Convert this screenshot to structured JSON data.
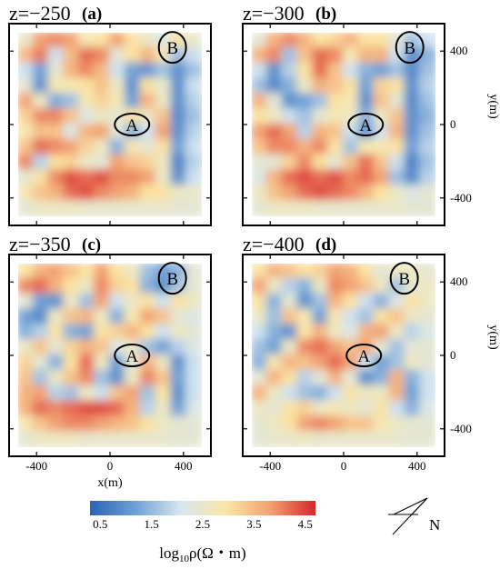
{
  "chart_data": [
    {
      "type": "heatmap",
      "title": "z=−250",
      "panel_label": "(a)",
      "xlim": [
        -500,
        500
      ],
      "ylim": [
        -500,
        500
      ],
      "x_ticks": [
        "-400",
        "0",
        "400"
      ],
      "y_ticks": [
        "400",
        "0",
        "-400"
      ],
      "xlabel": "",
      "ylabel": "",
      "annotations": [
        {
          "text": "A",
          "x": 120,
          "y": 0
        },
        {
          "text": "B",
          "x": 340,
          "y": 420
        }
      ],
      "z": [
        [
          2.5,
          3.8,
          4.0,
          3.8,
          2.8,
          3.0,
          3.8,
          3.0,
          2.6,
          2.2,
          3.0,
          2.5
        ],
        [
          3.5,
          4.1,
          2.0,
          3.5,
          4.2,
          4.0,
          2.4,
          3.0,
          3.6,
          2.8,
          1.6,
          2.0
        ],
        [
          2.0,
          1.2,
          2.4,
          3.6,
          4.0,
          3.5,
          2.0,
          1.2,
          1.1,
          1.6,
          1.0,
          1.6
        ],
        [
          2.4,
          1.0,
          2.8,
          2.8,
          3.0,
          3.4,
          2.6,
          1.0,
          3.0,
          2.5,
          1.0,
          2.0
        ],
        [
          3.8,
          2.6,
          1.3,
          1.6,
          2.8,
          3.2,
          2.8,
          1.2,
          3.6,
          2.6,
          1.0,
          1.8
        ],
        [
          3.2,
          4.0,
          4.0,
          3.4,
          2.2,
          2.6,
          2.4,
          3.0,
          2.6,
          3.4,
          0.9,
          1.6
        ],
        [
          2.8,
          3.4,
          3.4,
          2.2,
          3.6,
          3.8,
          2.4,
          1.4,
          2.0,
          3.8,
          1.0,
          1.8
        ],
        [
          3.4,
          4.2,
          4.0,
          3.8,
          3.2,
          2.6,
          1.4,
          2.8,
          2.4,
          3.0,
          1.2,
          2.0
        ],
        [
          4.0,
          1.8,
          3.0,
          3.2,
          2.6,
          2.4,
          3.8,
          3.4,
          3.2,
          2.6,
          0.8,
          1.8
        ],
        [
          2.4,
          3.0,
          4.0,
          4.4,
          4.2,
          4.4,
          4.0,
          4.0,
          3.8,
          2.6,
          1.0,
          2.0
        ],
        [
          2.8,
          3.4,
          3.6,
          4.2,
          4.4,
          4.0,
          3.8,
          3.6,
          3.0,
          3.0,
          2.6,
          2.5
        ],
        [
          2.4,
          2.6,
          2.6,
          2.6,
          2.5,
          2.5,
          2.5,
          2.5,
          2.5,
          2.5,
          2.4,
          2.4
        ]
      ]
    },
    {
      "type": "heatmap",
      "title": "z=−300",
      "panel_label": "(b)",
      "xlim": [
        -500,
        500
      ],
      "ylim": [
        -500,
        500
      ],
      "x_ticks": [
        "-400",
        "0",
        "400"
      ],
      "y_ticks": [
        "400",
        "0",
        "-400"
      ],
      "xlabel": "",
      "ylabel": "y(m)",
      "annotations": [
        {
          "text": "A",
          "x": 120,
          "y": 0
        },
        {
          "text": "B",
          "x": 360,
          "y": 420
        }
      ],
      "z": [
        [
          2.4,
          3.6,
          4.0,
          3.6,
          3.0,
          3.2,
          3.6,
          3.0,
          3.0,
          2.4,
          1.6,
          2.0
        ],
        [
          3.6,
          4.0,
          1.6,
          3.4,
          4.2,
          4.0,
          2.8,
          3.6,
          3.6,
          2.0,
          1.0,
          1.4
        ],
        [
          2.0,
          1.0,
          1.8,
          3.0,
          4.2,
          3.4,
          2.0,
          1.4,
          1.2,
          1.6,
          0.9,
          1.6
        ],
        [
          1.6,
          0.9,
          1.4,
          2.6,
          3.6,
          3.4,
          3.0,
          1.2,
          3.2,
          3.0,
          1.0,
          1.8
        ],
        [
          3.6,
          2.4,
          1.0,
          1.2,
          1.6,
          3.0,
          2.8,
          1.0,
          3.4,
          2.4,
          0.9,
          1.6
        ],
        [
          3.0,
          2.6,
          2.0,
          1.6,
          2.4,
          2.8,
          2.6,
          1.4,
          2.6,
          3.4,
          1.0,
          1.4
        ],
        [
          3.8,
          4.2,
          3.8,
          1.8,
          3.6,
          3.4,
          2.0,
          1.0,
          2.0,
          3.6,
          1.0,
          1.6
        ],
        [
          3.4,
          4.0,
          4.0,
          3.6,
          4.0,
          3.0,
          1.6,
          2.8,
          2.8,
          3.0,
          1.2,
          1.8
        ],
        [
          2.4,
          2.4,
          3.2,
          4.0,
          3.0,
          2.4,
          3.4,
          4.2,
          3.4,
          2.0,
          0.8,
          1.6
        ],
        [
          2.2,
          3.6,
          4.2,
          4.4,
          4.2,
          4.4,
          4.0,
          4.2,
          3.8,
          1.6,
          0.9,
          1.8
        ],
        [
          2.6,
          3.4,
          3.8,
          4.2,
          4.4,
          4.2,
          4.0,
          3.6,
          3.0,
          2.6,
          2.2,
          2.4
        ],
        [
          2.4,
          2.6,
          2.6,
          2.6,
          2.5,
          2.5,
          2.5,
          2.5,
          2.5,
          2.5,
          2.4,
          2.4
        ]
      ]
    },
    {
      "type": "heatmap",
      "title": "z=−350",
      "panel_label": "(c)",
      "xlim": [
        -500,
        500
      ],
      "ylim": [
        -500,
        500
      ],
      "x_ticks": [
        "-400",
        "0",
        "400"
      ],
      "y_ticks": [
        "400",
        "0",
        "-400"
      ],
      "xlabel": "x(m)",
      "ylabel": "",
      "annotations": [
        {
          "text": "A",
          "x": 120,
          "y": 0
        },
        {
          "text": "B",
          "x": 340,
          "y": 420
        }
      ],
      "z": [
        [
          3.0,
          3.6,
          3.8,
          3.4,
          3.0,
          3.8,
          3.0,
          2.6,
          1.6,
          1.2,
          1.4,
          2.4
        ],
        [
          4.0,
          4.2,
          3.6,
          3.0,
          2.6,
          4.0,
          3.2,
          3.0,
          1.4,
          1.0,
          1.6,
          2.4
        ],
        [
          2.4,
          1.2,
          1.0,
          2.6,
          1.6,
          3.8,
          2.0,
          2.6,
          3.0,
          2.0,
          3.0,
          2.6
        ],
        [
          1.2,
          0.9,
          2.6,
          3.4,
          3.6,
          2.6,
          1.4,
          2.8,
          3.8,
          3.4,
          2.4,
          2.2
        ],
        [
          1.4,
          1.8,
          3.0,
          1.4,
          1.2,
          3.0,
          3.2,
          3.6,
          3.0,
          2.0,
          2.6,
          2.4
        ],
        [
          2.6,
          3.4,
          2.4,
          3.2,
          3.6,
          3.4,
          2.2,
          2.6,
          1.6,
          1.2,
          1.8,
          2.2
        ],
        [
          3.2,
          2.4,
          1.4,
          3.0,
          4.2,
          2.6,
          1.2,
          2.4,
          3.6,
          2.6,
          1.0,
          2.0
        ],
        [
          3.4,
          1.6,
          2.6,
          3.4,
          4.0,
          1.6,
          1.0,
          2.6,
          4.0,
          3.4,
          1.2,
          2.0
        ],
        [
          3.6,
          3.8,
          1.8,
          1.6,
          2.6,
          2.0,
          3.4,
          3.8,
          1.6,
          3.0,
          1.0,
          2.0
        ],
        [
          3.6,
          4.2,
          4.0,
          4.2,
          4.4,
          4.4,
          4.2,
          3.6,
          1.8,
          2.6,
          1.2,
          2.2
        ],
        [
          2.8,
          3.4,
          3.8,
          4.0,
          4.0,
          3.8,
          3.6,
          3.4,
          3.0,
          2.6,
          2.4,
          2.4
        ],
        [
          2.4,
          2.6,
          2.6,
          2.6,
          2.5,
          2.5,
          2.5,
          2.5,
          2.5,
          2.5,
          2.4,
          2.4
        ]
      ]
    },
    {
      "type": "heatmap",
      "title": "z=−400",
      "panel_label": "(d)",
      "xlim": [
        -500,
        500
      ],
      "ylim": [
        -500,
        500
      ],
      "x_ticks": [
        "-400",
        "0",
        "400"
      ],
      "y_ticks": [
        "400",
        "0",
        "-400"
      ],
      "xlabel": "",
      "ylabel": "y(m)",
      "annotations": [
        {
          "text": "A",
          "x": 110,
          "y": 0
        },
        {
          "text": "B",
          "x": 330,
          "y": 420
        }
      ],
      "z": [
        [
          3.0,
          3.6,
          3.4,
          3.0,
          3.2,
          3.8,
          3.6,
          3.0,
          2.4,
          2.6,
          2.6,
          2.4
        ],
        [
          3.8,
          2.6,
          1.8,
          1.4,
          2.6,
          4.0,
          3.8,
          3.4,
          2.6,
          1.6,
          2.4,
          2.6
        ],
        [
          3.0,
          1.4,
          2.4,
          1.0,
          1.6,
          3.6,
          3.0,
          2.0,
          1.4,
          2.2,
          3.0,
          2.6
        ],
        [
          2.6,
          1.6,
          3.4,
          2.8,
          1.2,
          2.8,
          2.0,
          1.6,
          3.0,
          3.4,
          2.6,
          2.4
        ],
        [
          2.0,
          1.4,
          1.0,
          3.0,
          3.6,
          2.6,
          2.2,
          3.6,
          3.8,
          2.6,
          1.8,
          2.2
        ],
        [
          1.6,
          1.2,
          2.6,
          4.0,
          4.2,
          3.8,
          3.4,
          3.8,
          2.4,
          1.6,
          2.4,
          2.4
        ],
        [
          1.4,
          2.8,
          3.6,
          3.4,
          3.8,
          4.2,
          3.8,
          2.0,
          1.2,
          1.6,
          2.6,
          2.4
        ],
        [
          2.4,
          3.6,
          3.0,
          1.8,
          2.4,
          3.6,
          2.4,
          1.0,
          1.4,
          3.6,
          1.4,
          2.0
        ],
        [
          3.6,
          2.6,
          2.0,
          1.6,
          1.4,
          2.0,
          3.0,
          2.6,
          2.6,
          3.6,
          1.2,
          2.0
        ],
        [
          2.6,
          2.4,
          3.0,
          3.2,
          2.6,
          2.8,
          2.6,
          2.4,
          3.0,
          2.0,
          1.4,
          2.2
        ],
        [
          2.4,
          2.6,
          3.0,
          3.8,
          4.0,
          3.8,
          3.4,
          3.4,
          2.8,
          2.6,
          2.4,
          2.4
        ],
        [
          2.4,
          2.5,
          2.5,
          2.6,
          2.5,
          2.5,
          2.5,
          2.5,
          2.5,
          2.5,
          2.4,
          2.4
        ]
      ]
    }
  ],
  "colorbar": {
    "ticks": [
      "0.5",
      "1.5",
      "2.5",
      "3.5",
      "4.5"
    ],
    "tick_values": [
      0.5,
      1.5,
      2.5,
      3.5,
      4.5
    ],
    "range": [
      0.3,
      4.7
    ],
    "label_main": "log",
    "label_sub": "10",
    "label_rest": "ρ(Ω・m)",
    "colors": [
      "#2a63b8",
      "#6f9fd4",
      "#d5e6f0",
      "#fbe7a6",
      "#f2a172",
      "#d6262c"
    ]
  },
  "north_arrow": {
    "label": "N"
  }
}
